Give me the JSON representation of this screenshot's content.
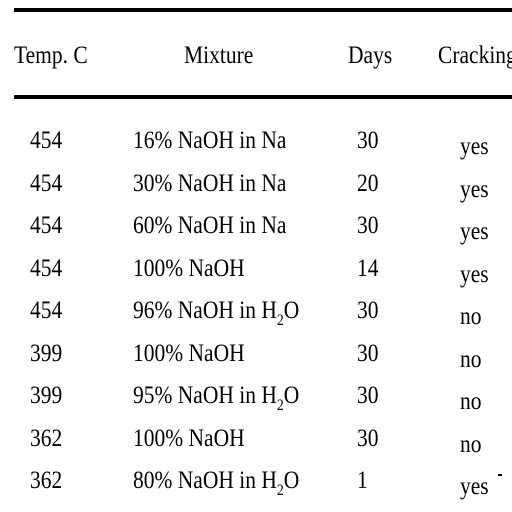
{
  "table": {
    "headers": {
      "temp": "Temp. C",
      "mixture": "Mixture",
      "days": "Days",
      "cracking": "Cracking"
    },
    "rows": [
      {
        "temp": "454",
        "mixture": "16% NaOH in Na",
        "days": "30",
        "cracking": "yes"
      },
      {
        "temp": "454",
        "mixture": "30% NaOH in Na",
        "days": "20",
        "cracking": "yes"
      },
      {
        "temp": "454",
        "mixture": "60% NaOH in Na",
        "days": "30",
        "cracking": "yes"
      },
      {
        "temp": "454",
        "mixture": "100% NaOH",
        "days": "14",
        "cracking": "yes"
      },
      {
        "temp": "454",
        "mixture_pre": "96% NaOH in H",
        "mixture_sub": "2",
        "mixture_post": "O",
        "days": "30",
        "cracking": "no"
      },
      {
        "temp": "399",
        "mixture": "100% NaOH",
        "days": "30",
        "cracking": "no"
      },
      {
        "temp": "399",
        "mixture_pre": "95% NaOH in H",
        "mixture_sub": "2",
        "mixture_post": "O",
        "days": "30",
        "cracking": "no"
      },
      {
        "temp": "362",
        "mixture": "100% NaOH",
        "days": "30",
        "cracking": "no"
      },
      {
        "temp": "362",
        "mixture_pre": "80% NaOH in H",
        "mixture_sub": "2",
        "mixture_post": "O",
        "days": "1",
        "cracking": "yes"
      }
    ]
  }
}
